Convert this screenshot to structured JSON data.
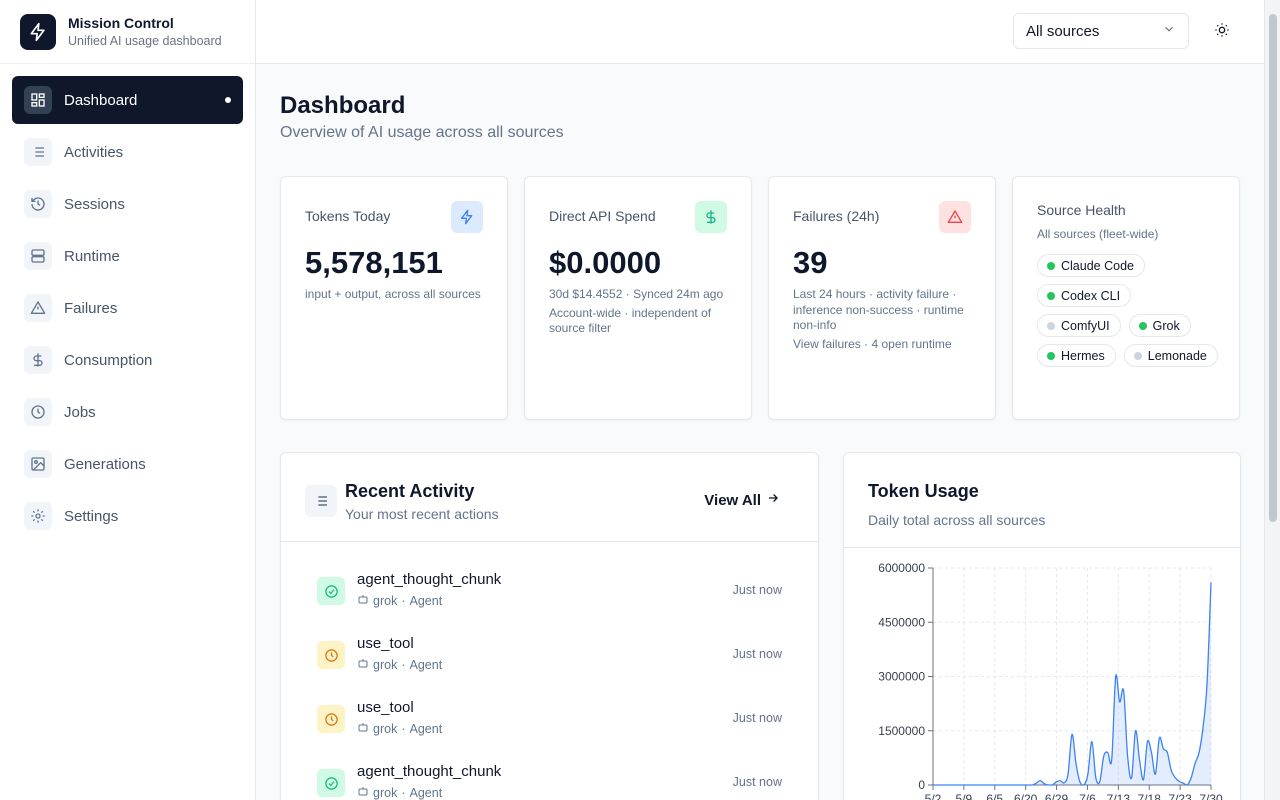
{
  "brand": {
    "title": "Mission Control",
    "subtitle": "Unified AI usage dashboard"
  },
  "nav": {
    "items": [
      {
        "label": "Dashboard",
        "icon": "dashboard-icon",
        "active": true
      },
      {
        "label": "Activities",
        "icon": "list-icon"
      },
      {
        "label": "Sessions",
        "icon": "history-icon"
      },
      {
        "label": "Runtime",
        "icon": "server-icon"
      },
      {
        "label": "Failures",
        "icon": "warning-icon"
      },
      {
        "label": "Consumption",
        "icon": "dollar-icon"
      },
      {
        "label": "Jobs",
        "icon": "clock-icon"
      },
      {
        "label": "Generations",
        "icon": "image-icon"
      },
      {
        "label": "Settings",
        "icon": "gear-icon"
      }
    ]
  },
  "header": {
    "source_select": "All sources",
    "theme_icon": "sun-icon"
  },
  "page": {
    "title": "Dashboard",
    "subtitle": "Overview of AI usage across all sources"
  },
  "stats": {
    "tokens": {
      "title": "Tokens Today",
      "value": "5,578,151",
      "desc": "input + output, across all sources",
      "icon": "bolt-icon",
      "accent": "#3b82f6"
    },
    "spend": {
      "title": "Direct API Spend",
      "value": "$0.0000",
      "desc1": "30d $14.4552 · Synced 24m ago",
      "desc2": "Account-wide · independent of source filter",
      "icon": "dollar-icon",
      "accent": "#10b981"
    },
    "failures": {
      "title": "Failures (24h)",
      "value": "39",
      "desc1": "Last 24 hours · activity failure · inference non-success · runtime non-info",
      "desc2": "View failures · 4 open runtime",
      "icon": "warning-icon",
      "accent": "#ef4444"
    }
  },
  "health": {
    "title": "Source Health",
    "subtitle": "All sources (fleet-wide)",
    "sources": [
      {
        "name": "Claude Code",
        "color": "#22c55e"
      },
      {
        "name": "Codex CLI",
        "color": "#22c55e"
      },
      {
        "name": "ComfyUI",
        "color": "#cbd5e1"
      },
      {
        "name": "Grok",
        "color": "#22c55e"
      },
      {
        "name": "Hermes",
        "color": "#22c55e"
      },
      {
        "name": "Lemonade",
        "color": "#cbd5e1"
      }
    ]
  },
  "recent": {
    "title": "Recent Activity",
    "subtitle": "Your most recent actions",
    "view_all": "View All",
    "items": [
      {
        "name": "agent_thought_chunk",
        "source": "grok",
        "sep": "·",
        "type": "Agent",
        "time": "Just now",
        "status": "success"
      },
      {
        "name": "use_tool",
        "source": "grok",
        "sep": "·",
        "type": "Agent",
        "time": "Just now",
        "status": "pending"
      },
      {
        "name": "use_tool",
        "source": "grok",
        "sep": "·",
        "type": "Agent",
        "time": "Just now",
        "status": "pending"
      },
      {
        "name": "agent_thought_chunk",
        "source": "grok",
        "sep": "·",
        "type": "Agent",
        "time": "Just now",
        "status": "success"
      }
    ]
  },
  "token_usage": {
    "title": "Token Usage",
    "subtitle": "Daily total across all sources"
  },
  "chart_data": {
    "type": "area",
    "title": "Token Usage",
    "ylim": [
      0,
      6000000
    ],
    "yticks": [
      0,
      1500000,
      3000000,
      4500000,
      6000000
    ],
    "xtick_labels": [
      "5/2",
      "5/9",
      "6/5",
      "6/20",
      "6/29",
      "7/6",
      "7/13",
      "7/18",
      "7/23",
      "7/30"
    ],
    "grid": true,
    "color": "#3b82f6",
    "values": [
      0,
      0,
      0,
      0,
      0,
      0,
      0,
      0,
      0,
      0,
      0,
      0,
      0,
      0,
      0,
      0,
      0,
      0,
      0,
      0,
      0,
      0,
      0,
      0,
      0,
      0,
      50000,
      120000,
      40000,
      0,
      0,
      80000,
      120000,
      60000,
      300000,
      1400000,
      600000,
      80000,
      0,
      300000,
      1200000,
      200000,
      100000,
      800000,
      900000,
      700000,
      3000000,
      2300000,
      2600000,
      800000,
      200000,
      1500000,
      700000,
      150000,
      1200000,
      900000,
      300000,
      1300000,
      1000000,
      900000,
      400000,
      200000,
      100000,
      50000,
      0,
      200000,
      600000,
      900000,
      1600000,
      2800000,
      5600000
    ]
  }
}
